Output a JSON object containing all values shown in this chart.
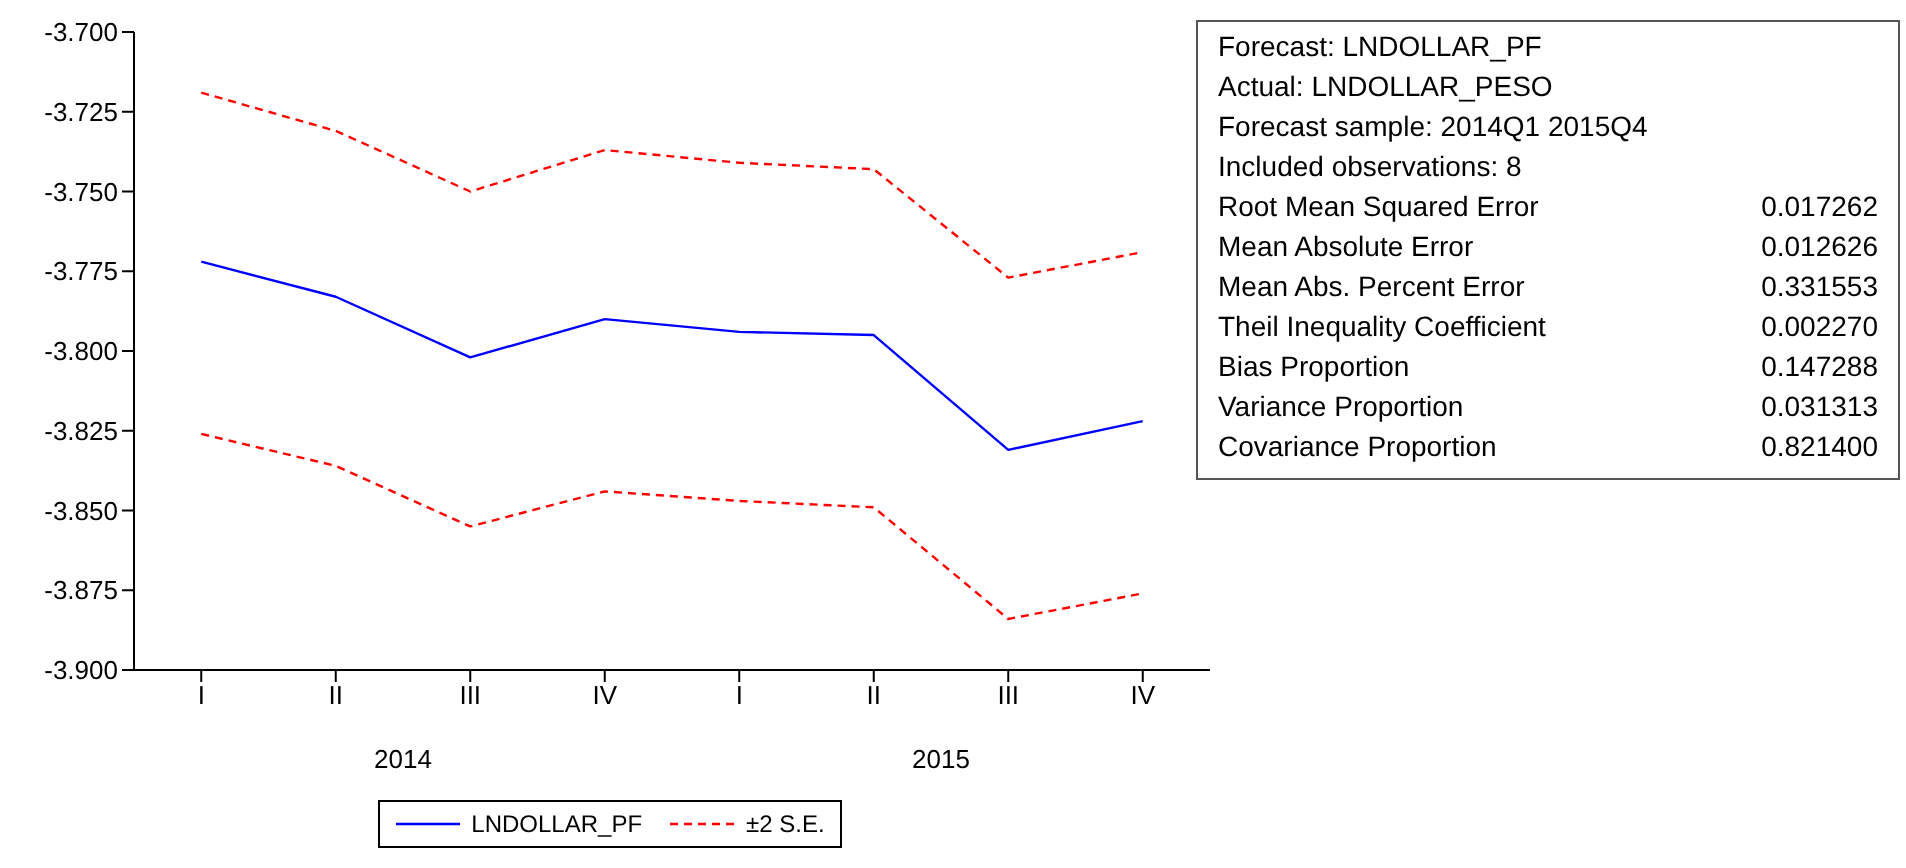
{
  "chart_data": [
    {
      "type": "line",
      "categories": [
        "I",
        "II",
        "III",
        "IV",
        "I",
        "II",
        "III",
        "IV"
      ],
      "series": [
        {
          "name": "LNDOLLAR_PF",
          "color": "#0000ff",
          "line_style": "solid",
          "values": [
            -3.772,
            -3.783,
            -3.802,
            -3.79,
            -3.794,
            -3.795,
            -3.831,
            -3.822
          ]
        },
        {
          "name": "±2 S.E.",
          "color": "#ff0000",
          "line_style": "dashed",
          "values": [
            -3.719,
            -3.731,
            -3.75,
            -3.737,
            -3.741,
            -3.743,
            -3.777,
            -3.769
          ]
        },
        {
          "color": "#ff0000",
          "line_style": "dashed",
          "values": [
            -3.826,
            -3.836,
            -3.855,
            -3.844,
            -3.847,
            -3.849,
            -3.884,
            -3.876
          ]
        }
      ],
      "annotations": [
        "2014",
        "2015"
      ],
      "ylim": [
        -3.9,
        -3.7
      ],
      "yticks": [
        {
          "value": -3.9,
          "label": "-3.900"
        },
        {
          "value": -3.875,
          "label": "-3.875"
        },
        {
          "value": -3.85,
          "label": "-3.850"
        },
        {
          "value": -3.825,
          "label": "-3.825"
        },
        {
          "value": -3.8,
          "label": "-3.800"
        },
        {
          "value": -3.775,
          "label": "-3.775"
        },
        {
          "value": -3.75,
          "label": "-3.750"
        },
        {
          "value": -3.725,
          "label": "-3.725"
        },
        {
          "value": -3.7,
          "label": "-3.700"
        }
      ],
      "marker": "none",
      "legend": "bottom"
    },
    {
      "type": "other",
      "annotations": [
        "Forecast: LNDOLLAR_PF",
        "Actual: LNDOLLAR_PESO",
        "Forecast sample: 2014Q1 2015Q4",
        "Included observations: 8"
      ],
      "categories": [
        "Root Mean Squared Error",
        "Mean Absolute Error",
        "Mean Abs. Percent Error",
        "Theil Inequality Coefficient",
        "Bias Proportion",
        "Variance Proportion",
        "Covariance Proportion"
      ],
      "value_labels": [
        "0.017262",
        "0.012626",
        "0.331553",
        "0.002270",
        "0.147288",
        "0.031313",
        "0.821400"
      ]
    }
  ]
}
